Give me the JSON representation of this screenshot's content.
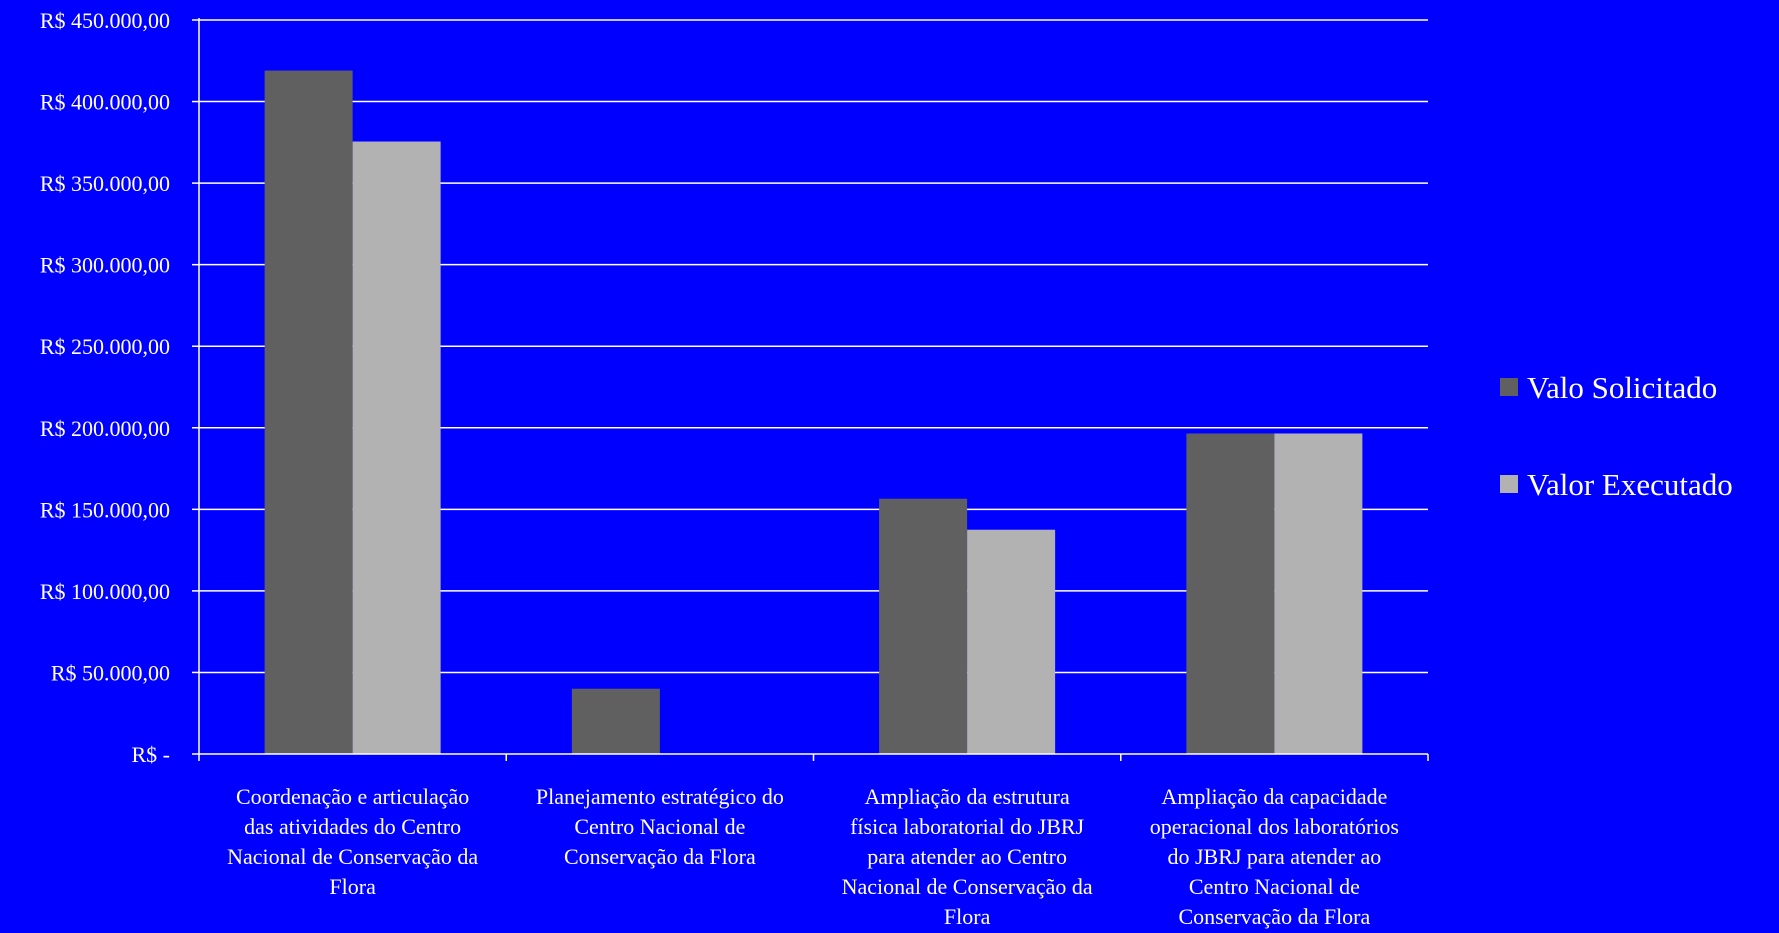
{
  "chart_data": {
    "type": "bar",
    "title": "",
    "xlabel": "",
    "ylabel": "",
    "ylim": [
      0,
      450000
    ],
    "y_ticks": [
      0,
      50000,
      100000,
      150000,
      200000,
      250000,
      300000,
      350000,
      400000,
      450000
    ],
    "y_tick_labels": [
      "R$ -",
      "R$ 50.000,00",
      "R$ 100.000,00",
      "R$ 150.000,00",
      "R$ 200.000,00",
      "R$ 250.000,00",
      "R$ 300.000,00",
      "R$ 350.000,00",
      "R$ 400.000,00",
      "R$ 450.000,00"
    ],
    "grid": true,
    "legend_position": "right",
    "categories": [
      [
        "Coordenação e articulação",
        "das atividades do Centro",
        "Nacional de Conservação da",
        "Flora"
      ],
      [
        "Planejamento estratégico do",
        "Centro Nacional de",
        "Conservação da Flora"
      ],
      [
        "Ampliação da estrutura",
        "física laboratorial do JBRJ",
        "para atender ao Centro",
        "Nacional de Conservação da",
        "Flora"
      ],
      [
        "Ampliação da capacidade",
        "operacional dos laboratórios",
        "do JBRJ para atender ao",
        "Centro Nacional de",
        "Conservação da Flora"
      ]
    ],
    "series": [
      {
        "name": "Valo Solicitado",
        "color": "#606060",
        "values": [
          419000,
          40000,
          156500,
          196500
        ]
      },
      {
        "name": "Valor Executado",
        "color": "#B2B2B2",
        "values": [
          375500,
          0,
          137500,
          196500
        ]
      }
    ],
    "colors": {
      "background": "#0000FF",
      "axis": "#FFFFFF",
      "grid": "#FFFFFF"
    }
  }
}
